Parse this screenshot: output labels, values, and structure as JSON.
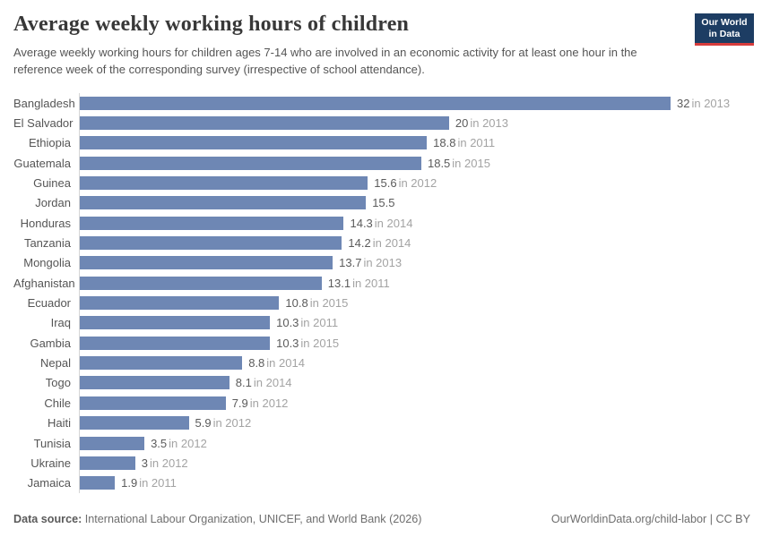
{
  "header": {
    "title": "Average weekly working hours of children",
    "subtitle": "Average weekly working hours for children ages 7-14 who are involved in an economic activity for at least one hour in the reference week of the corresponding survey (irrespective of school attendance).",
    "logo": {
      "line1": "Our World",
      "line2": "in Data",
      "bg_color": "#1d3d63",
      "accent_color": "#d73c3c"
    }
  },
  "chart_data": {
    "type": "bar",
    "orientation": "horizontal",
    "title": "Average weekly working hours of children",
    "xlabel": "",
    "ylabel": "",
    "xlim": [
      0,
      32
    ],
    "grid": false,
    "legend": false,
    "bar_color": "#6e87b4",
    "axis_line_color": "#d6d6d6",
    "categories": [
      "Bangladesh",
      "El Salvador",
      "Ethiopia",
      "Guatemala",
      "Guinea",
      "Jordan",
      "Honduras",
      "Tanzania",
      "Mongolia",
      "Afghanistan",
      "Ecuador",
      "Iraq",
      "Gambia",
      "Nepal",
      "Togo",
      "Chile",
      "Haiti",
      "Tunisia",
      "Ukraine",
      "Jamaica"
    ],
    "values": [
      32,
      20,
      18.8,
      18.5,
      15.6,
      15.5,
      14.3,
      14.2,
      13.7,
      13.1,
      10.8,
      10.3,
      10.3,
      8.8,
      8.1,
      7.9,
      5.9,
      3.5,
      3,
      1.9
    ],
    "rows": [
      {
        "country": "Bangladesh",
        "value": 32,
        "value_label": "32",
        "year_label": "in 2013"
      },
      {
        "country": "El Salvador",
        "value": 20,
        "value_label": "20",
        "year_label": "in 2013"
      },
      {
        "country": "Ethiopia",
        "value": 18.8,
        "value_label": "18.8",
        "year_label": "in 2011"
      },
      {
        "country": "Guatemala",
        "value": 18.5,
        "value_label": "18.5",
        "year_label": "in 2015"
      },
      {
        "country": "Guinea",
        "value": 15.6,
        "value_label": "15.6",
        "year_label": "in 2012"
      },
      {
        "country": "Jordan",
        "value": 15.5,
        "value_label": "15.5",
        "year_label": ""
      },
      {
        "country": "Honduras",
        "value": 14.3,
        "value_label": "14.3",
        "year_label": "in 2014"
      },
      {
        "country": "Tanzania",
        "value": 14.2,
        "value_label": "14.2",
        "year_label": "in 2014"
      },
      {
        "country": "Mongolia",
        "value": 13.7,
        "value_label": "13.7",
        "year_label": "in 2013"
      },
      {
        "country": "Afghanistan",
        "value": 13.1,
        "value_label": "13.1",
        "year_label": "in 2011"
      },
      {
        "country": "Ecuador",
        "value": 10.8,
        "value_label": "10.8",
        "year_label": "in 2015"
      },
      {
        "country": "Iraq",
        "value": 10.3,
        "value_label": "10.3",
        "year_label": "in 2011"
      },
      {
        "country": "Gambia",
        "value": 10.3,
        "value_label": "10.3",
        "year_label": "in 2015"
      },
      {
        "country": "Nepal",
        "value": 8.8,
        "value_label": "8.8",
        "year_label": "in 2014"
      },
      {
        "country": "Togo",
        "value": 8.1,
        "value_label": "8.1",
        "year_label": "in 2014"
      },
      {
        "country": "Chile",
        "value": 7.9,
        "value_label": "7.9",
        "year_label": "in 2012"
      },
      {
        "country": "Haiti",
        "value": 5.9,
        "value_label": "5.9",
        "year_label": "in 2012"
      },
      {
        "country": "Tunisia",
        "value": 3.5,
        "value_label": "3.5",
        "year_label": "in 2012"
      },
      {
        "country": "Ukraine",
        "value": 3,
        "value_label": "3",
        "year_label": "in 2012"
      },
      {
        "country": "Jamaica",
        "value": 1.9,
        "value_label": "1.9",
        "year_label": "in 2011"
      }
    ]
  },
  "footer": {
    "source_bold": "Data source:",
    "source_text": " International Labour Organization, UNICEF, and World Bank (2026)",
    "credit": "OurWorldinData.org/child-labor | CC BY"
  }
}
